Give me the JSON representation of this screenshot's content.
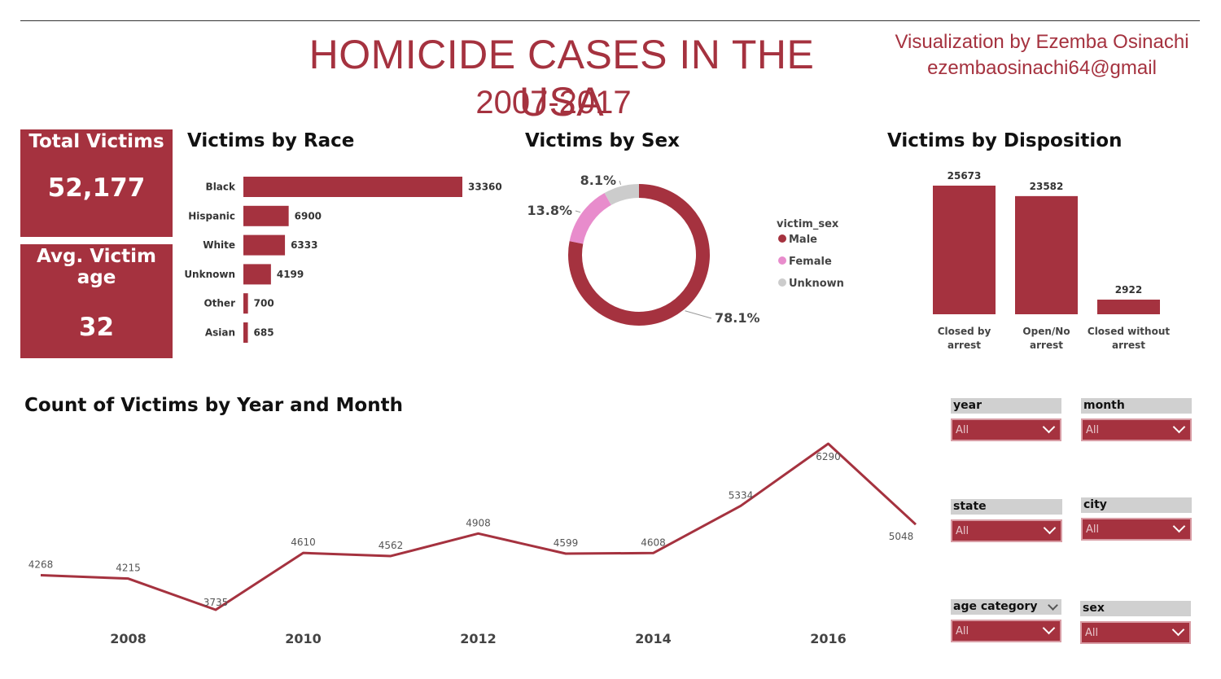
{
  "header": {
    "title": "HOMICIDE CASES IN THE USA",
    "subtitle": "2007-2017",
    "credit_line1": "Visualization by Ezemba Osinachi",
    "credit_line2": "ezembaosinachi64@gmail"
  },
  "kpis": {
    "total_label": "Total Victims",
    "total_value": "52,177",
    "age_label": "Avg. Victim age",
    "age_value": "32"
  },
  "colors": {
    "accent": "#a5323f",
    "female": "#e88ccc",
    "unknown": "#cccccc"
  },
  "chart_data": [
    {
      "type": "bar",
      "orientation": "horizontal",
      "title": "Victims by Race",
      "categories": [
        "Black",
        "Hispanic",
        "White",
        "Unknown",
        "Other",
        "Asian"
      ],
      "values": [
        33360,
        6900,
        6333,
        4199,
        700,
        685
      ],
      "xlim": [
        0,
        33360
      ]
    },
    {
      "type": "pie",
      "donut": true,
      "title": "Victims by Sex",
      "legend_title": "victim_sex",
      "legend_position": "right",
      "labels": [
        "Male",
        "Female",
        "Unknown"
      ],
      "values": [
        78.1,
        13.8,
        8.1
      ],
      "value_labels": [
        "78.1%",
        "13.8%",
        "8.1%"
      ]
    },
    {
      "type": "bar",
      "orientation": "vertical",
      "title": "Victims by Disposition",
      "categories": [
        "Closed by arrest",
        "Open/No arrest",
        "Closed without arrest"
      ],
      "category_lines": [
        [
          "Closed by",
          "arrest"
        ],
        [
          "Open/No",
          "arrest"
        ],
        [
          "Closed without",
          "arrest"
        ]
      ],
      "values": [
        25673,
        23582,
        2922
      ],
      "ylim": [
        0,
        25673
      ]
    },
    {
      "type": "line",
      "title": "Count of Victims by Year and Month",
      "x": [
        2007,
        2008,
        2009,
        2010,
        2011,
        2012,
        2013,
        2014,
        2015,
        2016,
        2017
      ],
      "values": [
        4268,
        4215,
        3735,
        4610,
        4562,
        4908,
        4599,
        4608,
        5334,
        6290,
        5048
      ],
      "xticks": [
        "2008",
        "2010",
        "2012",
        "2014",
        "2016"
      ],
      "xtick_values": [
        2008,
        2010,
        2012,
        2014,
        2016
      ],
      "xlim": [
        2007,
        2017
      ],
      "ylim": [
        3735,
        6290
      ],
      "grid": false
    }
  ],
  "slicers": [
    {
      "label": "year",
      "value": "All"
    },
    {
      "label": "month",
      "value": "All"
    },
    {
      "label": "state",
      "value": "All"
    },
    {
      "label": "city",
      "value": "All"
    },
    {
      "label": "age category",
      "value": "All"
    },
    {
      "label": "sex",
      "value": "All"
    }
  ]
}
